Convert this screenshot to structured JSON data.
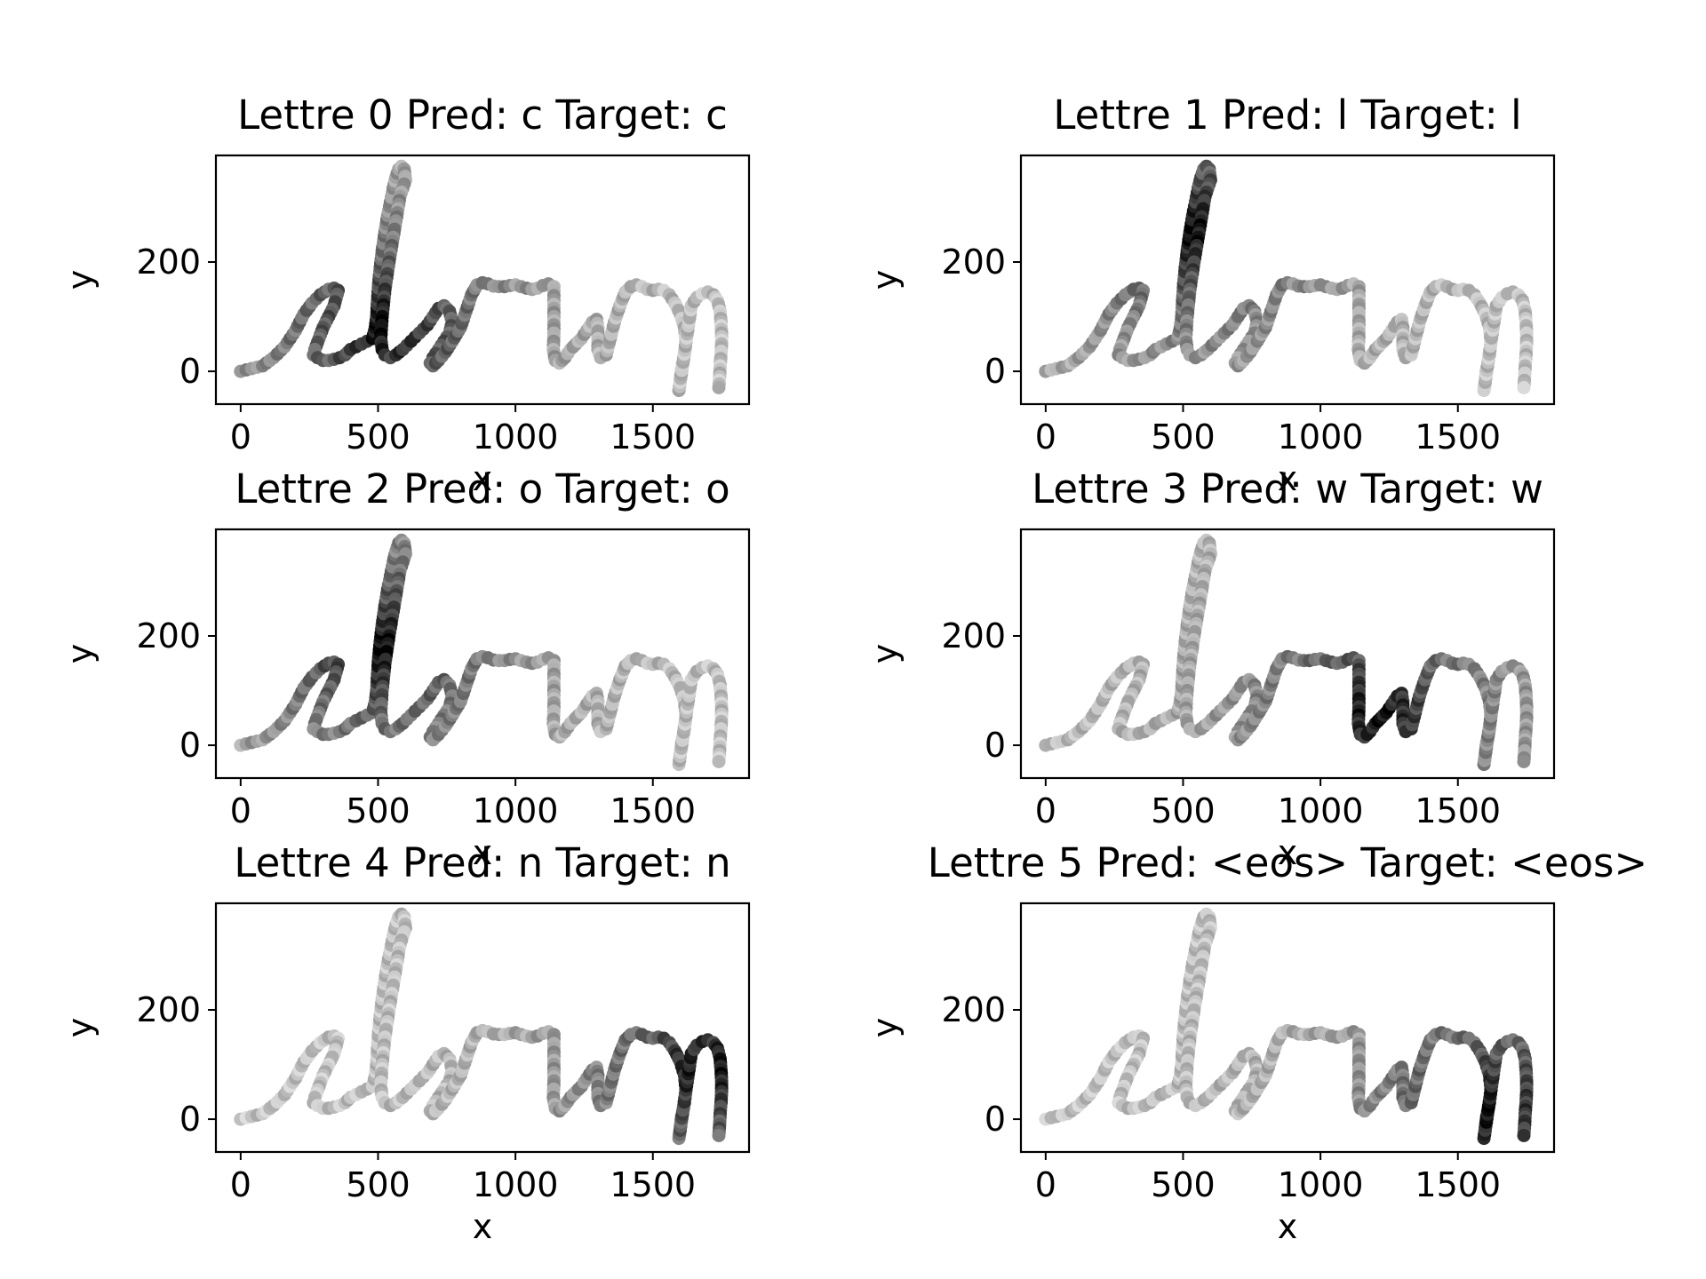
{
  "figure": {
    "background": "#ffffff",
    "point_color_scale": "greyscale",
    "point_color_light": "#f2f2f2",
    "point_color_dark": "#000000"
  },
  "chart_data": [
    {
      "type": "scatter",
      "title": "Lettre 0 Pred: c Target: c",
      "xlabel": "x",
      "ylabel": "y",
      "xticks": [
        "0",
        "500",
        "1000",
        "1500"
      ],
      "yticks": [
        "0",
        "200"
      ],
      "xlim": [
        -90,
        1850
      ],
      "ylim": [
        -60,
        395
      ],
      "grid": false,
      "attention_focus": [
        520,
        80
      ]
    },
    {
      "type": "scatter",
      "title": "Lettre 1 Pred: l Target: l",
      "xlabel": "x",
      "ylabel": "y",
      "xticks": [
        "0",
        "500",
        "1000",
        "1500"
      ],
      "yticks": [
        "0",
        "200"
      ],
      "xlim": [
        -90,
        1850
      ],
      "ylim": [
        -60,
        395
      ],
      "grid": false,
      "attention_focus": [
        520,
        260
      ]
    },
    {
      "type": "scatter",
      "title": "Lettre 2 Pred: o Target: o",
      "xlabel": "x",
      "ylabel": "y",
      "xticks": [
        "0",
        "500",
        "1000",
        "1500"
      ],
      "yticks": [
        "0",
        "200"
      ],
      "xlim": [
        -90,
        1850
      ],
      "ylim": [
        -60,
        395
      ],
      "grid": false,
      "attention_focus": [
        500,
        180
      ]
    },
    {
      "type": "scatter",
      "title": "Lettre 3 Pred: w Target: w",
      "xlabel": "x",
      "ylabel": "y",
      "xticks": [
        "0",
        "500",
        "1000",
        "1500"
      ],
      "yticks": [
        "0",
        "200"
      ],
      "xlim": [
        -90,
        1850
      ],
      "ylim": [
        -60,
        395
      ],
      "grid": false,
      "attention_focus": [
        1200,
        60
      ]
    },
    {
      "type": "scatter",
      "title": "Lettre 4 Pred: n Target: n",
      "xlabel": "x",
      "ylabel": "y",
      "xticks": [
        "0",
        "500",
        "1000",
        "1500"
      ],
      "yticks": [
        "0",
        "200"
      ],
      "xlim": [
        -90,
        1850
      ],
      "ylim": [
        -60,
        395
      ],
      "grid": false,
      "attention_focus": [
        1700,
        90
      ]
    },
    {
      "type": "scatter",
      "title": "Lettre 5 Pred: <eos> Target: <eos>",
      "xlabel": "x",
      "ylabel": "y",
      "xticks": [
        "0",
        "500",
        "1000",
        "1500"
      ],
      "yticks": [
        "0",
        "200"
      ],
      "xlim": [
        -90,
        1850
      ],
      "ylim": [
        -60,
        395
      ],
      "grid": false,
      "attention_focus": [
        1620,
        20
      ]
    }
  ],
  "stroke_points": [
    [
      0,
      0
    ],
    [
      40,
      5
    ],
    [
      80,
      10
    ],
    [
      120,
      25
    ],
    [
      160,
      45
    ],
    [
      200,
      75
    ],
    [
      230,
      105
    ],
    [
      260,
      125
    ],
    [
      290,
      140
    ],
    [
      320,
      150
    ],
    [
      340,
      152
    ],
    [
      355,
      148
    ],
    [
      340,
      120
    ],
    [
      320,
      100
    ],
    [
      300,
      80
    ],
    [
      285,
      60
    ],
    [
      270,
      40
    ],
    [
      265,
      30
    ],
    [
      280,
      25
    ],
    [
      300,
      20
    ],
    [
      320,
      20
    ],
    [
      340,
      22
    ],
    [
      360,
      25
    ],
    [
      380,
      30
    ],
    [
      400,
      40
    ],
    [
      420,
      45
    ],
    [
      440,
      50
    ],
    [
      460,
      55
    ],
    [
      480,
      60
    ],
    [
      490,
      80
    ],
    [
      495,
      100
    ],
    [
      498,
      130
    ],
    [
      502,
      160
    ],
    [
      508,
      190
    ],
    [
      515,
      220
    ],
    [
      525,
      255
    ],
    [
      535,
      285
    ],
    [
      545,
      310
    ],
    [
      555,
      335
    ],
    [
      565,
      355
    ],
    [
      575,
      370
    ],
    [
      585,
      375
    ],
    [
      595,
      370
    ],
    [
      600,
      350
    ],
    [
      580,
      320
    ],
    [
      560,
      260
    ],
    [
      540,
      200
    ],
    [
      525,
      150
    ],
    [
      515,
      100
    ],
    [
      510,
      60
    ],
    [
      515,
      40
    ],
    [
      525,
      30
    ],
    [
      545,
      25
    ],
    [
      565,
      30
    ],
    [
      590,
      40
    ],
    [
      620,
      55
    ],
    [
      650,
      70
    ],
    [
      680,
      85
    ],
    [
      700,
      100
    ],
    [
      720,
      115
    ],
    [
      740,
      120
    ],
    [
      760,
      110
    ],
    [
      770,
      90
    ],
    [
      760,
      70
    ],
    [
      740,
      55
    ],
    [
      720,
      40
    ],
    [
      700,
      25
    ],
    [
      690,
      15
    ],
    [
      700,
      10
    ],
    [
      720,
      20
    ],
    [
      745,
      35
    ],
    [
      770,
      55
    ],
    [
      800,
      80
    ],
    [
      820,
      110
    ],
    [
      840,
      140
    ],
    [
      860,
      158
    ],
    [
      880,
      162
    ],
    [
      900,
      160
    ],
    [
      920,
      156
    ],
    [
      940,
      155
    ],
    [
      960,
      155
    ],
    [
      980,
      157
    ],
    [
      1000,
      158
    ],
    [
      1020,
      155
    ],
    [
      1040,
      152
    ],
    [
      1060,
      150
    ],
    [
      1080,
      152
    ],
    [
      1100,
      157
    ],
    [
      1120,
      160
    ],
    [
      1140,
      155
    ],
    [
      1140,
      130
    ],
    [
      1140,
      100
    ],
    [
      1140,
      70
    ],
    [
      1138,
      40
    ],
    [
      1145,
      20
    ],
    [
      1160,
      15
    ],
    [
      1180,
      25
    ],
    [
      1200,
      40
    ],
    [
      1220,
      50
    ],
    [
      1240,
      60
    ],
    [
      1260,
      75
    ],
    [
      1280,
      90
    ],
    [
      1295,
      95
    ],
    [
      1300,
      80
    ],
    [
      1300,
      60
    ],
    [
      1300,
      40
    ],
    [
      1310,
      25
    ],
    [
      1330,
      30
    ],
    [
      1345,
      60
    ],
    [
      1360,
      90
    ],
    [
      1380,
      120
    ],
    [
      1400,
      145
    ],
    [
      1420,
      155
    ],
    [
      1440,
      158
    ],
    [
      1460,
      155
    ],
    [
      1480,
      150
    ],
    [
      1500,
      148
    ],
    [
      1520,
      150
    ],
    [
      1540,
      148
    ],
    [
      1560,
      140
    ],
    [
      1580,
      125
    ],
    [
      1600,
      105
    ],
    [
      1615,
      80
    ],
    [
      1620,
      55
    ],
    [
      1615,
      30
    ],
    [
      1605,
      5
    ],
    [
      1600,
      -15
    ],
    [
      1595,
      -35
    ],
    [
      1640,
      120
    ],
    [
      1660,
      135
    ],
    [
      1680,
      142
    ],
    [
      1700,
      145
    ],
    [
      1720,
      140
    ],
    [
      1735,
      130
    ],
    [
      1745,
      110
    ],
    [
      1748,
      90
    ],
    [
      1750,
      70
    ],
    [
      1750,
      50
    ],
    [
      1748,
      30
    ],
    [
      1745,
      10
    ],
    [
      1743,
      -10
    ],
    [
      1740,
      -30
    ]
  ]
}
